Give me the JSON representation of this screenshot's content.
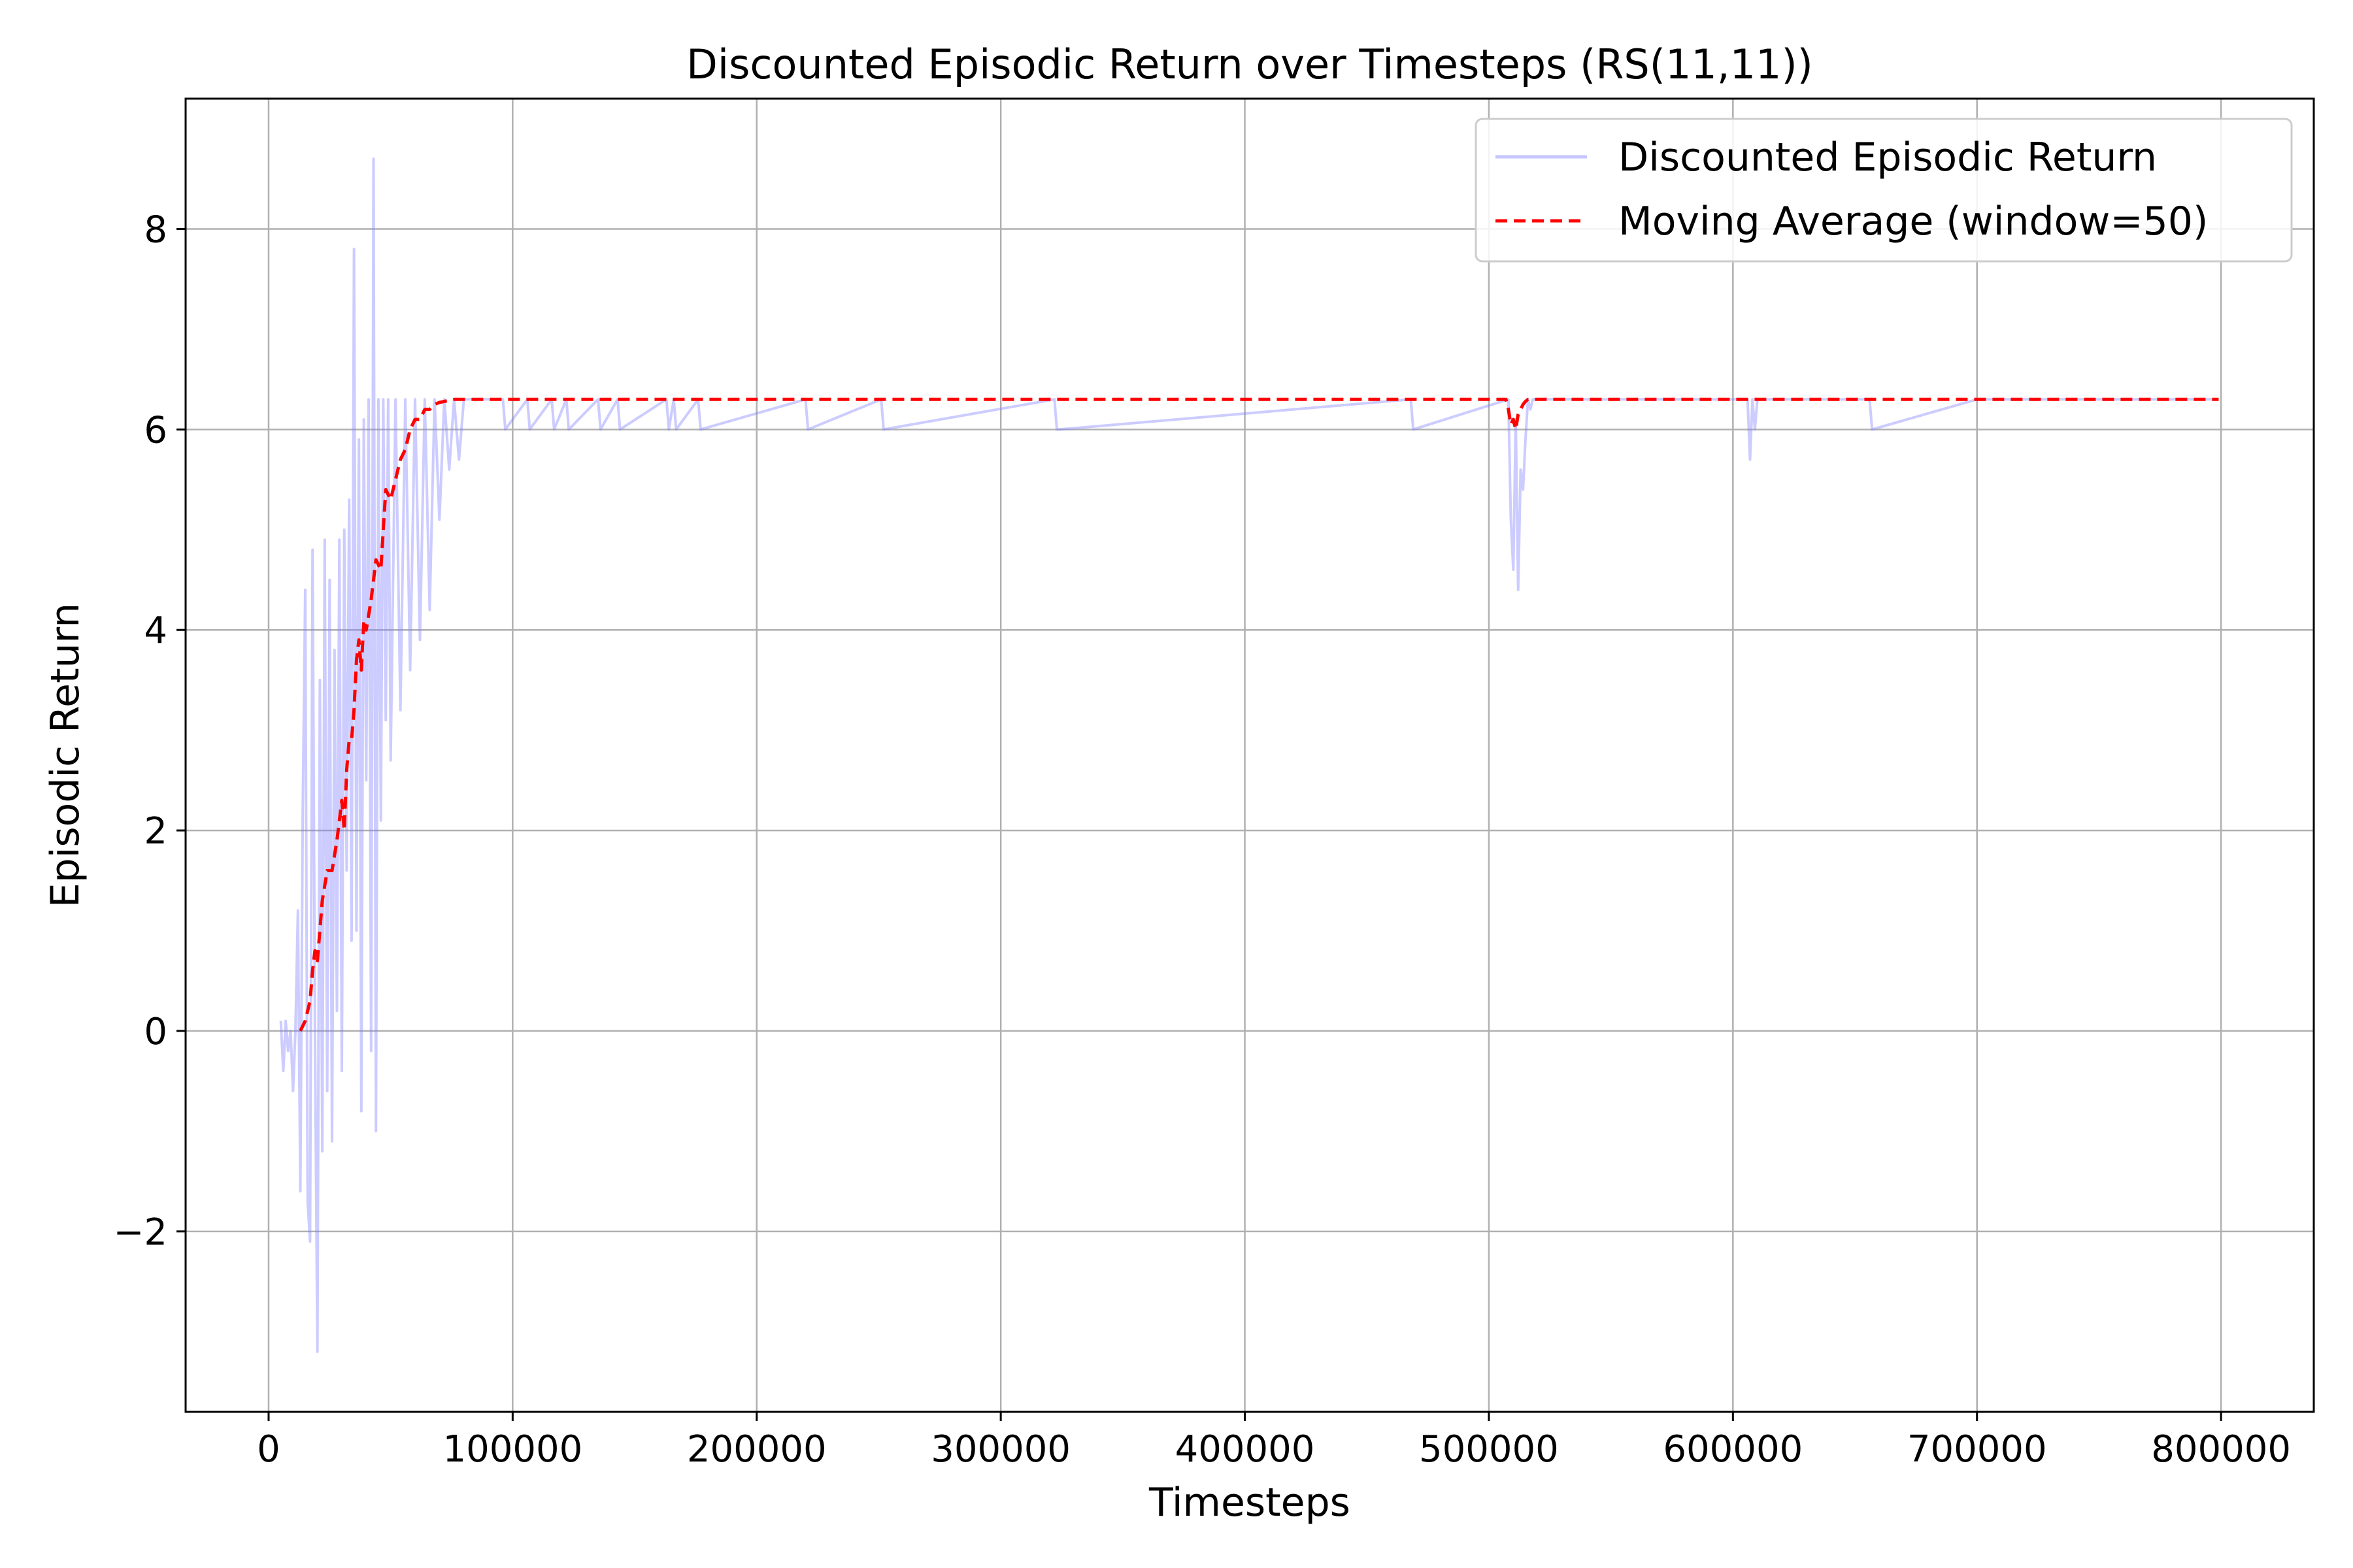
{
  "chart_data": {
    "type": "line",
    "title": "Discounted Episodic Return over Timesteps (RS(11,11))",
    "xlabel": "Timesteps",
    "ylabel": "Episodic Return",
    "xlim": [
      -34000,
      838000
    ],
    "ylim": [
      -3.8,
      9.3
    ],
    "x_ticks": [
      0,
      100000,
      200000,
      300000,
      400000,
      500000,
      600000,
      700000,
      800000
    ],
    "x_tick_labels": [
      "0",
      "100000",
      "200000",
      "300000",
      "400000",
      "500000",
      "600000",
      "700000",
      "800000"
    ],
    "y_ticks": [
      -2,
      0,
      2,
      4,
      6,
      8
    ],
    "y_tick_labels": [
      "−2",
      "0",
      "2",
      "4",
      "6",
      "8"
    ],
    "grid": true,
    "legend_position": "upper-right",
    "legend": [
      "Discounted Episodic Return",
      "Moving Average (window=50)"
    ],
    "colors": {
      "raw": "#8080ff",
      "moving_average": "#ff0000"
    },
    "series": [
      {
        "name": "Discounted Episodic Return",
        "style": "solid",
        "x": [
          5000,
          6000,
          7000,
          8000,
          9000,
          10000,
          11000,
          12000,
          13000,
          14000,
          15000,
          16000,
          17000,
          18000,
          19000,
          20000,
          21000,
          22000,
          23000,
          24000,
          25000,
          26000,
          27000,
          28000,
          29000,
          30000,
          31000,
          32000,
          33000,
          34000,
          35000,
          36000,
          37000,
          38000,
          39000,
          40000,
          41000,
          42000,
          43000,
          44000,
          45000,
          46000,
          47000,
          48000,
          49000,
          50000,
          52000,
          54000,
          56000,
          58000,
          60000,
          62000,
          64000,
          66000,
          68000,
          70000,
          72000,
          74000,
          76000,
          78000,
          80000,
          96000,
          97000,
          106000,
          107000,
          116000,
          117000,
          122000,
          123000,
          135000,
          136000,
          143000,
          144000,
          163000,
          164000,
          166000,
          167000,
          176000,
          177000,
          220000,
          221000,
          251000,
          252000,
          322000,
          323000,
          324000,
          468000,
          469000,
          508000,
          509000,
          510000,
          511000,
          512000,
          513000,
          514000,
          515000,
          516000,
          517000,
          518000,
          606000,
          607000,
          608000,
          609000,
          610000,
          656000,
          657000,
          700000,
          799000
        ],
        "values": [
          0.1,
          -0.4,
          0.1,
          -0.2,
          0.0,
          -0.6,
          0.0,
          1.2,
          -1.6,
          2.2,
          4.4,
          -1.7,
          -2.1,
          4.8,
          0.0,
          -3.2,
          3.5,
          -1.2,
          4.9,
          -0.6,
          4.5,
          -1.1,
          3.8,
          0.2,
          4.9,
          -0.4,
          5.0,
          1.6,
          5.3,
          0.9,
          7.8,
          1.0,
          5.9,
          -0.8,
          6.1,
          2.5,
          6.3,
          -0.2,
          8.7,
          -1.0,
          6.3,
          2.1,
          6.3,
          3.1,
          6.3,
          2.7,
          6.3,
          3.2,
          6.3,
          3.6,
          6.3,
          3.9,
          6.3,
          4.2,
          6.3,
          5.1,
          6.3,
          5.6,
          6.3,
          5.7,
          6.3,
          6.3,
          6.0,
          6.3,
          6.0,
          6.3,
          6.0,
          6.3,
          6.0,
          6.3,
          6.0,
          6.3,
          6.0,
          6.3,
          6.0,
          6.3,
          6.0,
          6.3,
          6.0,
          6.3,
          6.0,
          6.3,
          6.0,
          6.3,
          6.0,
          6.0,
          6.3,
          6.0,
          6.3,
          5.1,
          4.6,
          6.1,
          4.4,
          5.6,
          5.4,
          5.9,
          6.3,
          6.2,
          6.3,
          6.3,
          5.7,
          6.3,
          6.0,
          6.3,
          6.3,
          6.0,
          6.3,
          6.3
        ]
      },
      {
        "name": "Moving Average (window=50)",
        "style": "dashed",
        "x": [
          13000,
          15000,
          17000,
          18000,
          19000,
          20000,
          22000,
          24000,
          26000,
          28000,
          30000,
          31000,
          32000,
          33000,
          34000,
          35000,
          36000,
          37000,
          38000,
          39000,
          40000,
          42000,
          44000,
          46000,
          47000,
          48000,
          50000,
          52000,
          54000,
          56000,
          58000,
          60000,
          62000,
          64000,
          66000,
          68000,
          70000,
          72000,
          74000,
          76000,
          78000,
          80000,
          150000,
          250000,
          350000,
          450000,
          505000,
          507000,
          508000,
          509000,
          510000,
          511000,
          512000,
          513000,
          514000,
          515000,
          516000,
          517000,
          518000,
          520000,
          600000,
          700000,
          799000
        ],
        "values": [
          0.0,
          0.1,
          0.3,
          0.6,
          0.8,
          0.7,
          1.3,
          1.6,
          1.6,
          1.9,
          2.3,
          2.0,
          2.6,
          2.9,
          2.9,
          3.2,
          3.7,
          3.9,
          3.6,
          4.1,
          4.0,
          4.3,
          4.7,
          4.6,
          5.0,
          5.4,
          5.3,
          5.5,
          5.7,
          5.8,
          6.0,
          6.1,
          6.1,
          6.2,
          6.2,
          6.25,
          6.27,
          6.28,
          6.29,
          6.3,
          6.3,
          6.3,
          6.3,
          6.3,
          6.3,
          6.3,
          6.3,
          6.3,
          6.2,
          6.05,
          6.1,
          6.0,
          6.15,
          6.2,
          6.25,
          6.28,
          6.3,
          6.3,
          6.3,
          6.3,
          6.3,
          6.3,
          6.3
        ]
      }
    ]
  }
}
